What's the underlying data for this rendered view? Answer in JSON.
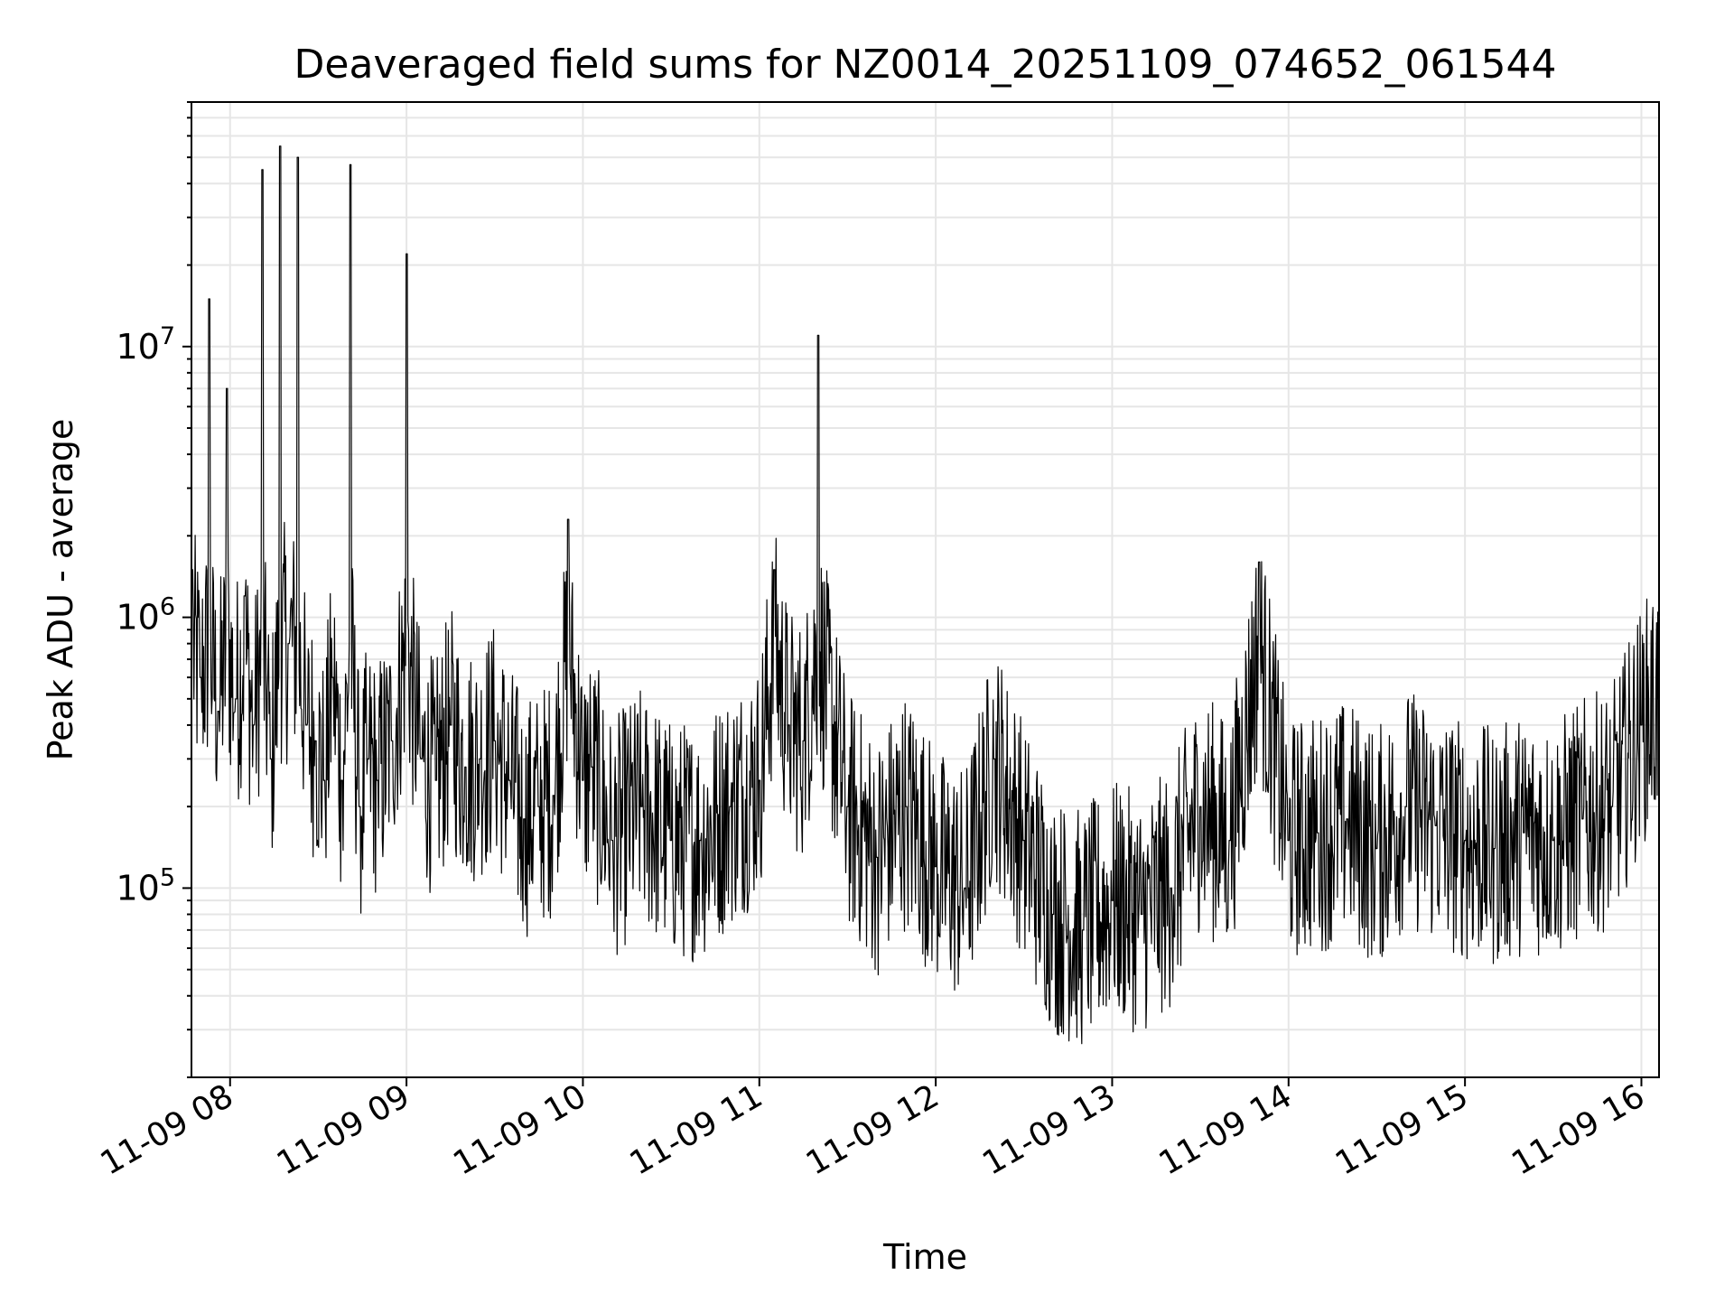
{
  "chart_data": {
    "type": "line",
    "title": "Deaveraged field sums for NZ0014_20251109_074652_061544",
    "xlabel": "Time",
    "ylabel": "Peak ADU - average",
    "yscale": "log",
    "xlim": [
      "2025-11-09 07:46:52",
      "2025-11-09 16:06:00"
    ],
    "ylim": [
      20000,
      80000000
    ],
    "x_ticks": [
      "11-09 08",
      "11-09 09",
      "11-09 10",
      "11-09 11",
      "11-09 12",
      "11-09 13",
      "11-09 14",
      "11-09 15",
      "11-09 16"
    ],
    "y_ticks": [
      {
        "value": 100000,
        "base": "10",
        "exp": "5"
      },
      {
        "value": 1000000,
        "base": "10",
        "exp": "6"
      },
      {
        "value": 10000000,
        "base": "10",
        "exp": "7"
      }
    ],
    "grid": true,
    "line_color": "#000000",
    "series": [
      {
        "x": [
          "2025-11-09 07:47",
          "2025-11-09 07:50",
          "2025-11-09 07:53",
          "2025-11-09 07:56",
          "2025-11-09 07:59",
          "2025-11-09 08:02",
          "2025-11-09 08:05",
          "2025-11-09 08:08",
          "2025-11-09 08:11",
          "2025-11-09 08:14",
          "2025-11-09 08:17",
          "2025-11-09 08:20",
          "2025-11-09 08:23",
          "2025-11-09 08:26",
          "2025-11-09 08:29",
          "2025-11-09 08:32",
          "2025-11-09 08:35",
          "2025-11-09 08:38",
          "2025-11-09 08:41",
          "2025-11-09 08:44",
          "2025-11-09 08:47",
          "2025-11-09 08:50",
          "2025-11-09 08:55",
          "2025-11-09 09:00",
          "2025-11-09 09:05",
          "2025-11-09 09:10",
          "2025-11-09 09:15",
          "2025-11-09 09:20",
          "2025-11-09 09:25",
          "2025-11-09 09:30",
          "2025-11-09 09:35",
          "2025-11-09 09:40",
          "2025-11-09 09:45",
          "2025-11-09 09:50",
          "2025-11-09 09:55",
          "2025-11-09 10:00",
          "2025-11-09 10:03",
          "2025-11-09 10:10",
          "2025-11-09 10:20",
          "2025-11-09 10:30",
          "2025-11-09 10:40",
          "2025-11-09 10:50",
          "2025-11-09 11:00",
          "2025-11-09 11:05",
          "2025-11-09 11:10",
          "2025-11-09 11:15",
          "2025-11-09 11:20",
          "2025-11-09 11:30",
          "2025-11-09 11:40",
          "2025-11-09 11:50",
          "2025-11-09 12:00",
          "2025-11-09 12:10",
          "2025-11-09 12:20",
          "2025-11-09 12:30",
          "2025-11-09 12:40",
          "2025-11-09 12:50",
          "2025-11-09 13:00",
          "2025-11-09 13:10",
          "2025-11-09 13:20",
          "2025-11-09 13:30",
          "2025-11-09 13:40",
          "2025-11-09 13:50",
          "2025-11-09 14:00",
          "2025-11-09 14:10",
          "2025-11-09 14:20",
          "2025-11-09 14:30",
          "2025-11-09 14:40",
          "2025-11-09 14:50",
          "2025-11-09 15:00",
          "2025-11-09 15:10",
          "2025-11-09 15:20",
          "2025-11-09 15:30",
          "2025-11-09 15:40",
          "2025-11-09 15:50",
          "2025-11-09 16:00",
          "2025-11-09 16:06"
        ],
        "y": [
          1500000,
          600000,
          15000000,
          450000,
          7000000,
          500000,
          1200000,
          400000,
          45000000,
          300000,
          55000000,
          800000,
          50000000,
          400000,
          350000,
          250000,
          600000,
          250000,
          47000000,
          200000,
          300000,
          250000,
          350000,
          22000000,
          300000,
          250000,
          400000,
          280000,
          300000,
          350000,
          250000,
          180000,
          200000,
          220000,
          2300000,
          250000,
          280000,
          150000,
          200000,
          150000,
          150000,
          200000,
          250000,
          1500000,
          400000,
          350000,
          11000000,
          200000,
          130000,
          200000,
          120000,
          100000,
          300000,
          150000,
          80000,
          70000,
          90000,
          80000,
          100000,
          200000,
          150000,
          1600000,
          150000,
          160000,
          180000,
          140000,
          200000,
          170000,
          150000,
          140000,
          160000,
          150000,
          180000,
          200000,
          400000,
          500000
        ]
      }
    ]
  }
}
